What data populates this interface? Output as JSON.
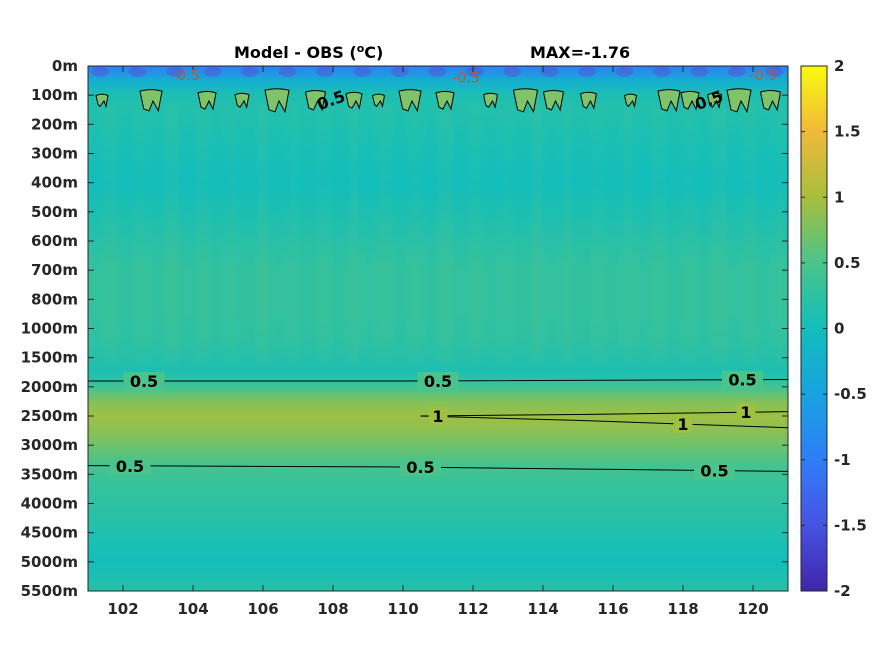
{
  "chart_data": {
    "type": "heatmap",
    "title_left": "Model - OBS (",
    "title_unit_sup": "o",
    "title_unit": "C)",
    "title_right": "MAX=-1.76",
    "x_range": [
      101,
      121
    ],
    "x_ticks": [
      {
        "v": 102,
        "label": "102"
      },
      {
        "v": 104,
        "label": "104"
      },
      {
        "v": 106,
        "label": "106"
      },
      {
        "v": 108,
        "label": "108"
      },
      {
        "v": 110,
        "label": "110"
      },
      {
        "v": 112,
        "label": "112"
      },
      {
        "v": 114,
        "label": "114"
      },
      {
        "v": 116,
        "label": "116"
      },
      {
        "v": 118,
        "label": "118"
      },
      {
        "v": 120,
        "label": "120"
      }
    ],
    "y_levels": [
      "0m",
      "100m",
      "200m",
      "300m",
      "400m",
      "500m",
      "600m",
      "700m",
      "800m",
      "1000m",
      "1500m",
      "2000m",
      "2500m",
      "3000m",
      "3500m",
      "4000m",
      "4500m",
      "5000m",
      "5500m"
    ],
    "colorbar": {
      "range": [
        -2,
        2
      ],
      "ticks": [
        {
          "v": 2,
          "label": "2"
        },
        {
          "v": 1.5,
          "label": "1.5"
        },
        {
          "v": 1,
          "label": "1"
        },
        {
          "v": 0.5,
          "label": "0.5"
        },
        {
          "v": 0,
          "label": "0"
        },
        {
          "v": -0.5,
          "label": "-0.5"
        },
        {
          "v": -1,
          "label": "-1"
        },
        {
          "v": -1.5,
          "label": "-1.5"
        },
        {
          "v": -2,
          "label": "-2"
        }
      ],
      "colormap": "parula"
    },
    "depth_profile": [
      {
        "level": 0.0,
        "value": -1.0
      },
      {
        "level": 0.5,
        "value": -0.3
      },
      {
        "level": 1.0,
        "value": 0.1
      },
      {
        "level": 1.5,
        "value": 0.15
      },
      {
        "level": 3.0,
        "value": 0.05
      },
      {
        "level": 4.0,
        "value": 0.0
      },
      {
        "level": 5.0,
        "value": 0.1
      },
      {
        "level": 7.0,
        "value": 0.3
      },
      {
        "level": 8.5,
        "value": 0.3
      },
      {
        "level": 9.5,
        "value": 0.25
      },
      {
        "level": 10.5,
        "value": 0.1
      },
      {
        "level": 11.0,
        "value": 0.4
      },
      {
        "level": 11.5,
        "value": 0.8
      },
      {
        "level": 12.0,
        "value": 0.95
      },
      {
        "level": 12.5,
        "value": 0.85
      },
      {
        "level": 13.0,
        "value": 0.7
      },
      {
        "level": 13.7,
        "value": 0.45
      },
      {
        "level": 14.5,
        "value": 0.3
      },
      {
        "level": 15.5,
        "value": 0.2
      },
      {
        "level": 16.5,
        "value": 0.05
      },
      {
        "level": 17.0,
        "value": 0.0
      },
      {
        "level": 18.0,
        "value": 0.2
      }
    ],
    "contours": [
      {
        "label": "0.5",
        "points": [
          [
            101.0,
            10.8
          ],
          [
            110.0,
            10.8
          ],
          [
            121.0,
            10.75
          ]
        ],
        "labels_at": [
          102.6,
          111.0,
          119.7
        ]
      },
      {
        "label": "1",
        "points": [
          [
            110.5,
            12.0
          ],
          [
            115.0,
            11.95
          ],
          [
            121.0,
            11.85
          ]
        ],
        "labels_at": [
          111.0,
          119.8
        ]
      },
      {
        "label": "1",
        "points": [
          [
            110.5,
            12.0
          ],
          [
            115.0,
            12.15
          ],
          [
            121.0,
            12.4
          ]
        ],
        "labels_at": [
          118.0
        ]
      },
      {
        "label": "0.5",
        "points": [
          [
            101.0,
            13.7
          ],
          [
            110.0,
            13.75
          ],
          [
            121.0,
            13.9
          ]
        ],
        "labels_at": [
          102.2,
          110.5,
          118.9
        ]
      }
    ],
    "top_contour_labels": [
      {
        "label": "0.5",
        "x": 108.0,
        "level": 1.35
      },
      {
        "label": "0.5",
        "x": 118.8,
        "level": 1.35
      }
    ],
    "surface_labels": [
      {
        "label": "-0.5",
        "x": 103.8,
        "level": 0.3
      },
      {
        "label": "-0.5",
        "x": 111.8,
        "level": 0.4
      },
      {
        "label": "-0.5",
        "x": 120.3,
        "level": 0.3
      }
    ]
  }
}
